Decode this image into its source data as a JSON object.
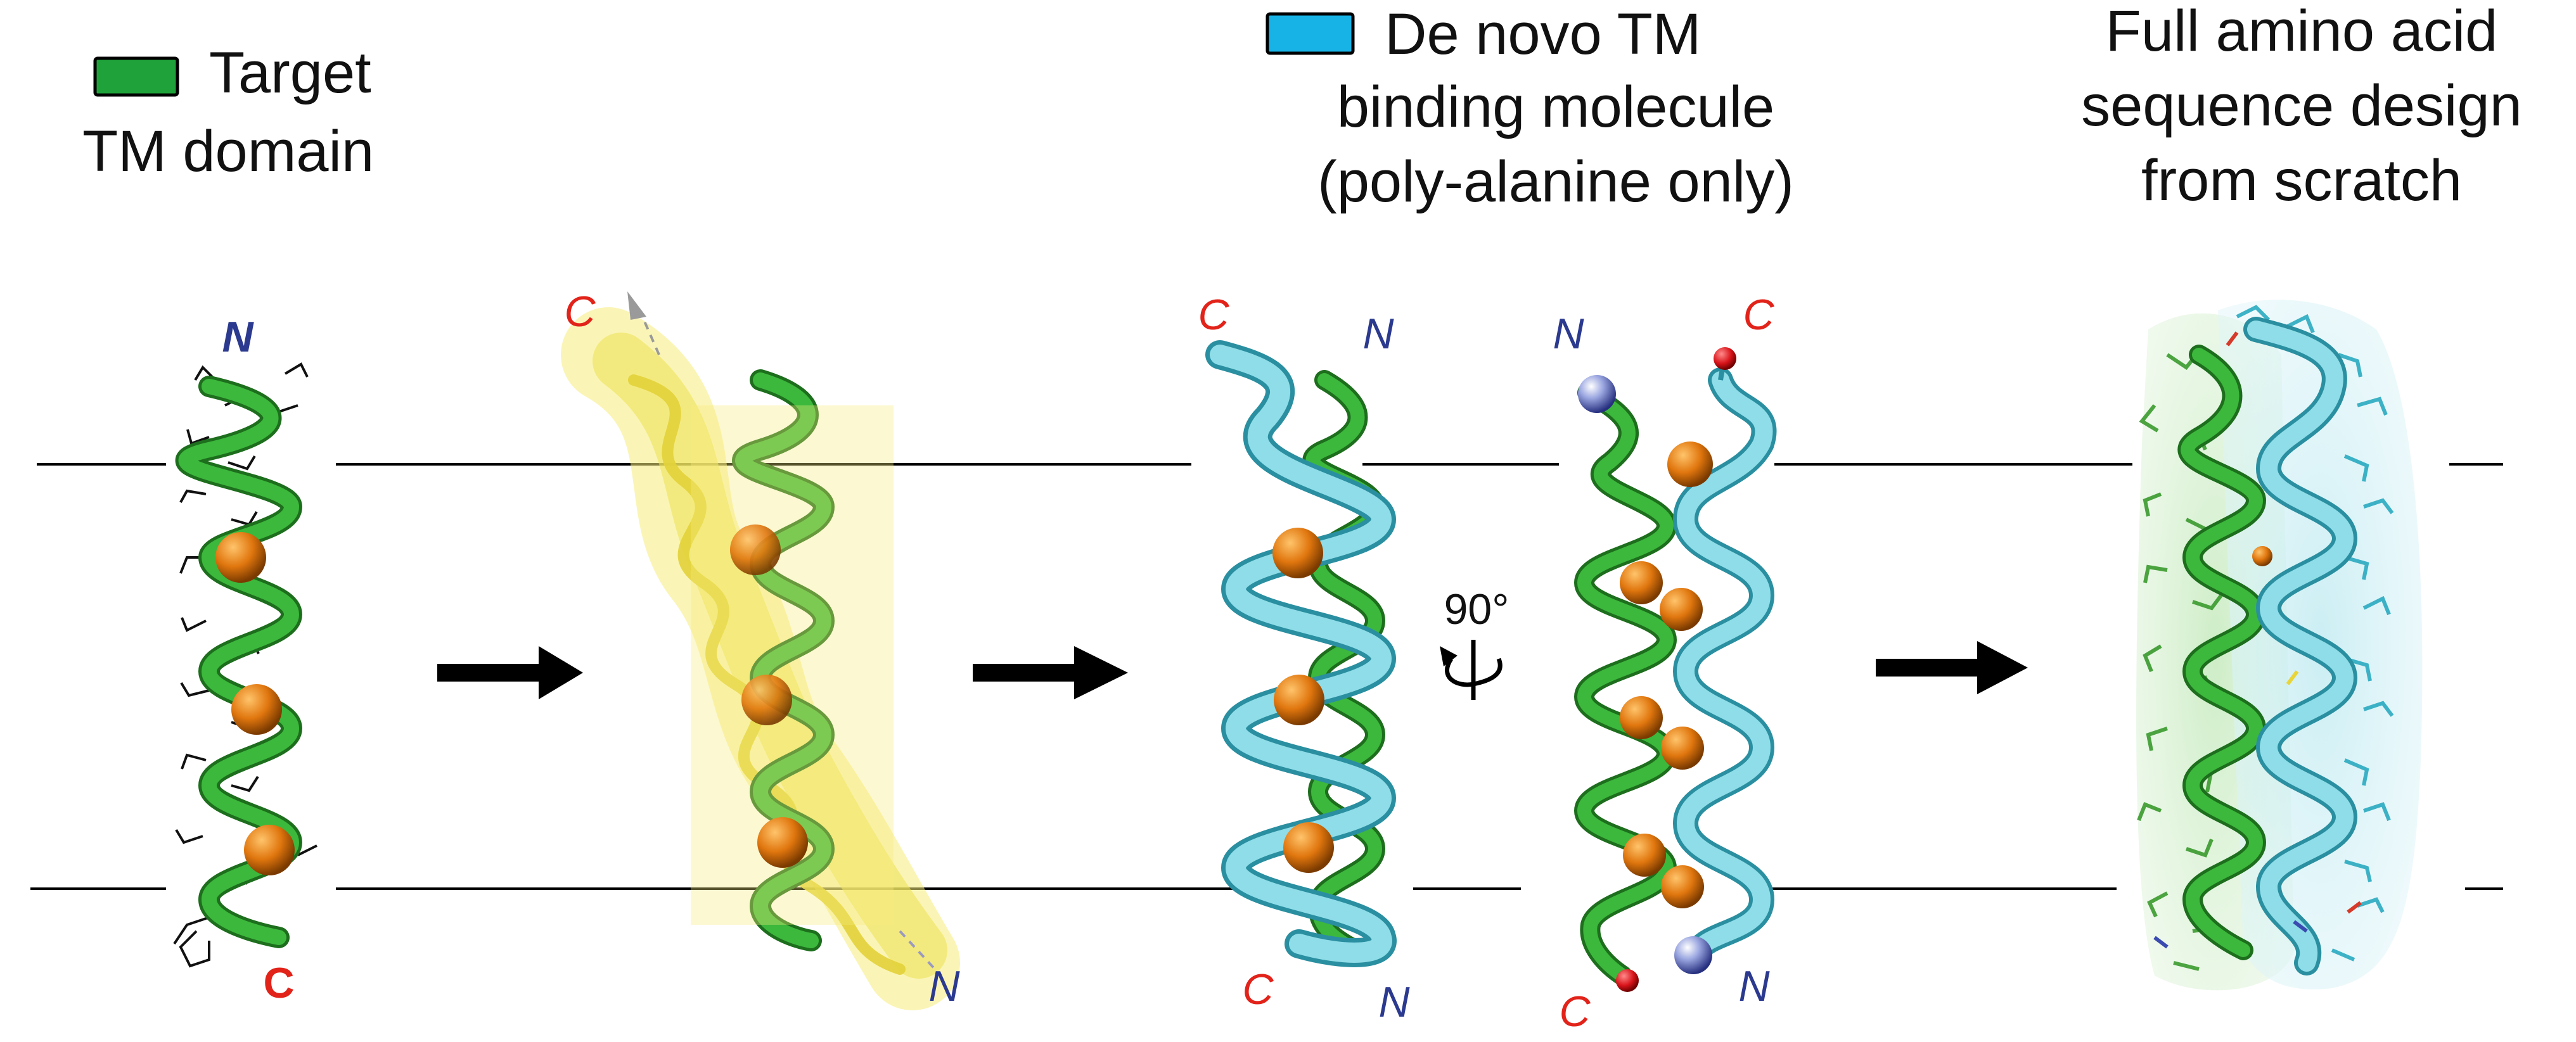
{
  "legend": {
    "target_label_line1": "Target",
    "target_label_line2": "TM domain",
    "target_color": "#1fa23a",
    "denovo_label_line1": "De novo TM",
    "denovo_label_line2": "binding molecule",
    "denovo_label_line3": "(poly-alanine only)",
    "denovo_color": "#17b3e6"
  },
  "final_step": {
    "line1": "Full amino acid",
    "line2": "sequence design",
    "line3": "from scratch"
  },
  "rotation_label": "90°",
  "termini": {
    "panel1_top": "N",
    "panel1_bottom": "C",
    "panel2_top": "C",
    "panel2_bottom": "N",
    "panel3_top_left": "C",
    "panel3_top_right": "N",
    "panel3_bottom_left": "C",
    "panel3_bottom_right": "N",
    "panel4_top_left": "N",
    "panel4_top_right": "C",
    "panel4_bottom_left": "C",
    "panel4_bottom_right": "N"
  },
  "colors": {
    "n_terminus": "#2b3a8f",
    "c_terminus": "#e2231a",
    "helix_green": "#2e9d2e",
    "helix_green_dark": "#1d6e1d",
    "helix_cyan": "#5bc7d6",
    "helix_cyan_dark": "#2a8fa0",
    "ensemble_yellow": "#f3e86a",
    "sphere_orange": "#e0760e",
    "arrow": "#000000"
  }
}
